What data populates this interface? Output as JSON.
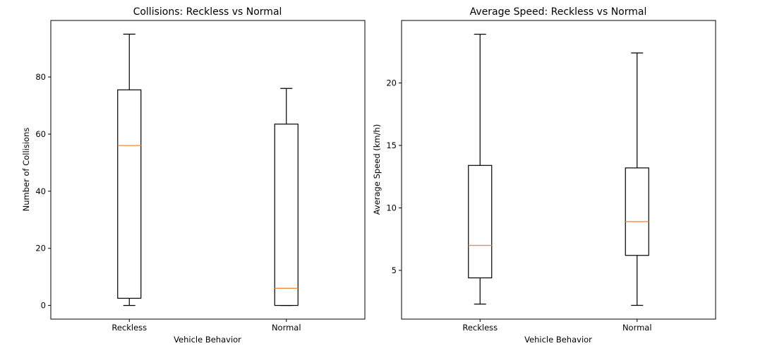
{
  "chart_data": [
    {
      "type": "box",
      "title": "Collisions: Reckless vs Normal",
      "xlabel": "Vehicle Behavior",
      "ylabel": "Number of Collisions",
      "categories": [
        "Reckless",
        "Normal"
      ],
      "ylim": [
        -4.8,
        99.8
      ],
      "yticks": [
        0,
        20,
        40,
        60,
        80
      ],
      "boxes": [
        {
          "whisker_low": 0,
          "q1": 2.5,
          "median": 56,
          "q3": 75.5,
          "whisker_high": 95
        },
        {
          "whisker_low": 0,
          "q1": 0,
          "median": 6,
          "q3": 63.5,
          "whisker_high": 76
        }
      ]
    },
    {
      "type": "box",
      "title": "Average Speed: Reckless vs Normal",
      "xlabel": "Vehicle Behavior",
      "ylabel": "Average Speed (km/h)",
      "categories": [
        "Reckless",
        "Normal"
      ],
      "ylim": [
        1.1,
        25.0
      ],
      "yticks": [
        5,
        10,
        15,
        20
      ],
      "boxes": [
        {
          "whisker_low": 2.3,
          "q1": 4.4,
          "median": 7.0,
          "q3": 13.4,
          "whisker_high": 23.9
        },
        {
          "whisker_low": 2.2,
          "q1": 6.2,
          "median": 8.9,
          "q3": 13.2,
          "whisker_high": 22.4
        }
      ]
    }
  ]
}
